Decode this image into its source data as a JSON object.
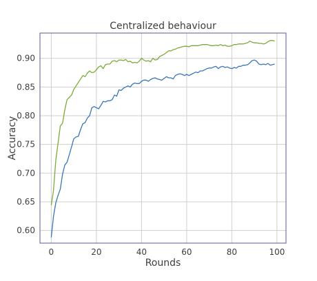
{
  "chart_data": {
    "type": "line",
    "title": "Centralized behaviour",
    "xlabel": "Rounds",
    "ylabel": "Accuracy",
    "xlim": [
      -5,
      104
    ],
    "ylim": [
      0.578,
      0.944
    ],
    "xticks": [
      0,
      20,
      40,
      60,
      80,
      100
    ],
    "yticks": [
      0.6,
      0.65,
      0.7,
      0.75,
      0.8,
      0.85,
      0.9
    ],
    "grid": true,
    "legend": "none",
    "colors": {
      "blue": "#3a75b8",
      "green": "#7aab3a",
      "grid": "#cfcfcf",
      "frame": "#5a5a8a"
    },
    "x": [
      0,
      1,
      2,
      3,
      4,
      5,
      6,
      7,
      8,
      9,
      10,
      11,
      12,
      13,
      14,
      15,
      16,
      17,
      18,
      19,
      20,
      21,
      22,
      23,
      24,
      25,
      26,
      27,
      28,
      29,
      30,
      31,
      32,
      33,
      34,
      35,
      36,
      37,
      38,
      39,
      40,
      41,
      42,
      43,
      44,
      45,
      46,
      47,
      48,
      49,
      50,
      51,
      52,
      53,
      54,
      55,
      56,
      57,
      58,
      59,
      60,
      61,
      62,
      63,
      64,
      65,
      66,
      67,
      68,
      69,
      70,
      71,
      72,
      73,
      74,
      75,
      76,
      77,
      78,
      79,
      80,
      81,
      82,
      83,
      84,
      85,
      86,
      87,
      88,
      89,
      90,
      91,
      92,
      93,
      94,
      95,
      96,
      97,
      98,
      99
    ],
    "series": [
      {
        "color": "#3a75b8",
        "values": [
          0.588,
          0.625,
          0.648,
          0.661,
          0.672,
          0.698,
          0.714,
          0.719,
          0.732,
          0.746,
          0.76,
          0.763,
          0.764,
          0.776,
          0.786,
          0.788,
          0.796,
          0.8,
          0.814,
          0.816,
          0.814,
          0.812,
          0.818,
          0.825,
          0.824,
          0.826,
          0.826,
          0.828,
          0.836,
          0.834,
          0.845,
          0.844,
          0.848,
          0.85,
          0.852,
          0.85,
          0.855,
          0.857,
          0.856,
          0.856,
          0.86,
          0.862,
          0.862,
          0.86,
          0.863,
          0.865,
          0.866,
          0.864,
          0.863,
          0.862,
          0.865,
          0.868,
          0.866,
          0.866,
          0.864,
          0.87,
          0.872,
          0.873,
          0.872,
          0.87,
          0.872,
          0.87,
          0.872,
          0.874,
          0.876,
          0.875,
          0.878,
          0.878,
          0.88,
          0.882,
          0.883,
          0.883,
          0.885,
          0.886,
          0.882,
          0.885,
          0.886,
          0.884,
          0.885,
          0.883,
          0.882,
          0.884,
          0.883,
          0.886,
          0.886,
          0.888,
          0.888,
          0.889,
          0.892,
          0.896,
          0.897,
          0.895,
          0.89,
          0.889,
          0.89,
          0.889,
          0.891,
          0.888,
          0.889,
          0.89
        ]
      },
      {
        "color": "#7aab3a",
        "values": [
          0.644,
          0.67,
          0.722,
          0.752,
          0.782,
          0.787,
          0.81,
          0.828,
          0.832,
          0.836,
          0.846,
          0.852,
          0.858,
          0.864,
          0.87,
          0.868,
          0.874,
          0.878,
          0.875,
          0.876,
          0.88,
          0.885,
          0.887,
          0.882,
          0.889,
          0.89,
          0.89,
          0.895,
          0.896,
          0.894,
          0.897,
          0.897,
          0.896,
          0.898,
          0.894,
          0.895,
          0.892,
          0.893,
          0.892,
          0.895,
          0.9,
          0.897,
          0.895,
          0.896,
          0.894,
          0.9,
          0.897,
          0.898,
          0.903,
          0.905,
          0.907,
          0.91,
          0.913,
          0.913,
          0.915,
          0.916,
          0.918,
          0.919,
          0.92,
          0.921,
          0.921,
          0.92,
          0.922,
          0.922,
          0.922,
          0.922,
          0.923,
          0.924,
          0.924,
          0.924,
          0.923,
          0.922,
          0.922,
          0.923,
          0.922,
          0.924,
          0.922,
          0.923,
          0.921,
          0.921,
          0.922,
          0.924,
          0.924,
          0.925,
          0.925,
          0.925,
          0.926,
          0.927,
          0.93,
          0.928,
          0.927,
          0.927,
          0.926,
          0.926,
          0.925,
          0.926,
          0.929,
          0.931,
          0.931,
          0.93
        ]
      }
    ]
  }
}
